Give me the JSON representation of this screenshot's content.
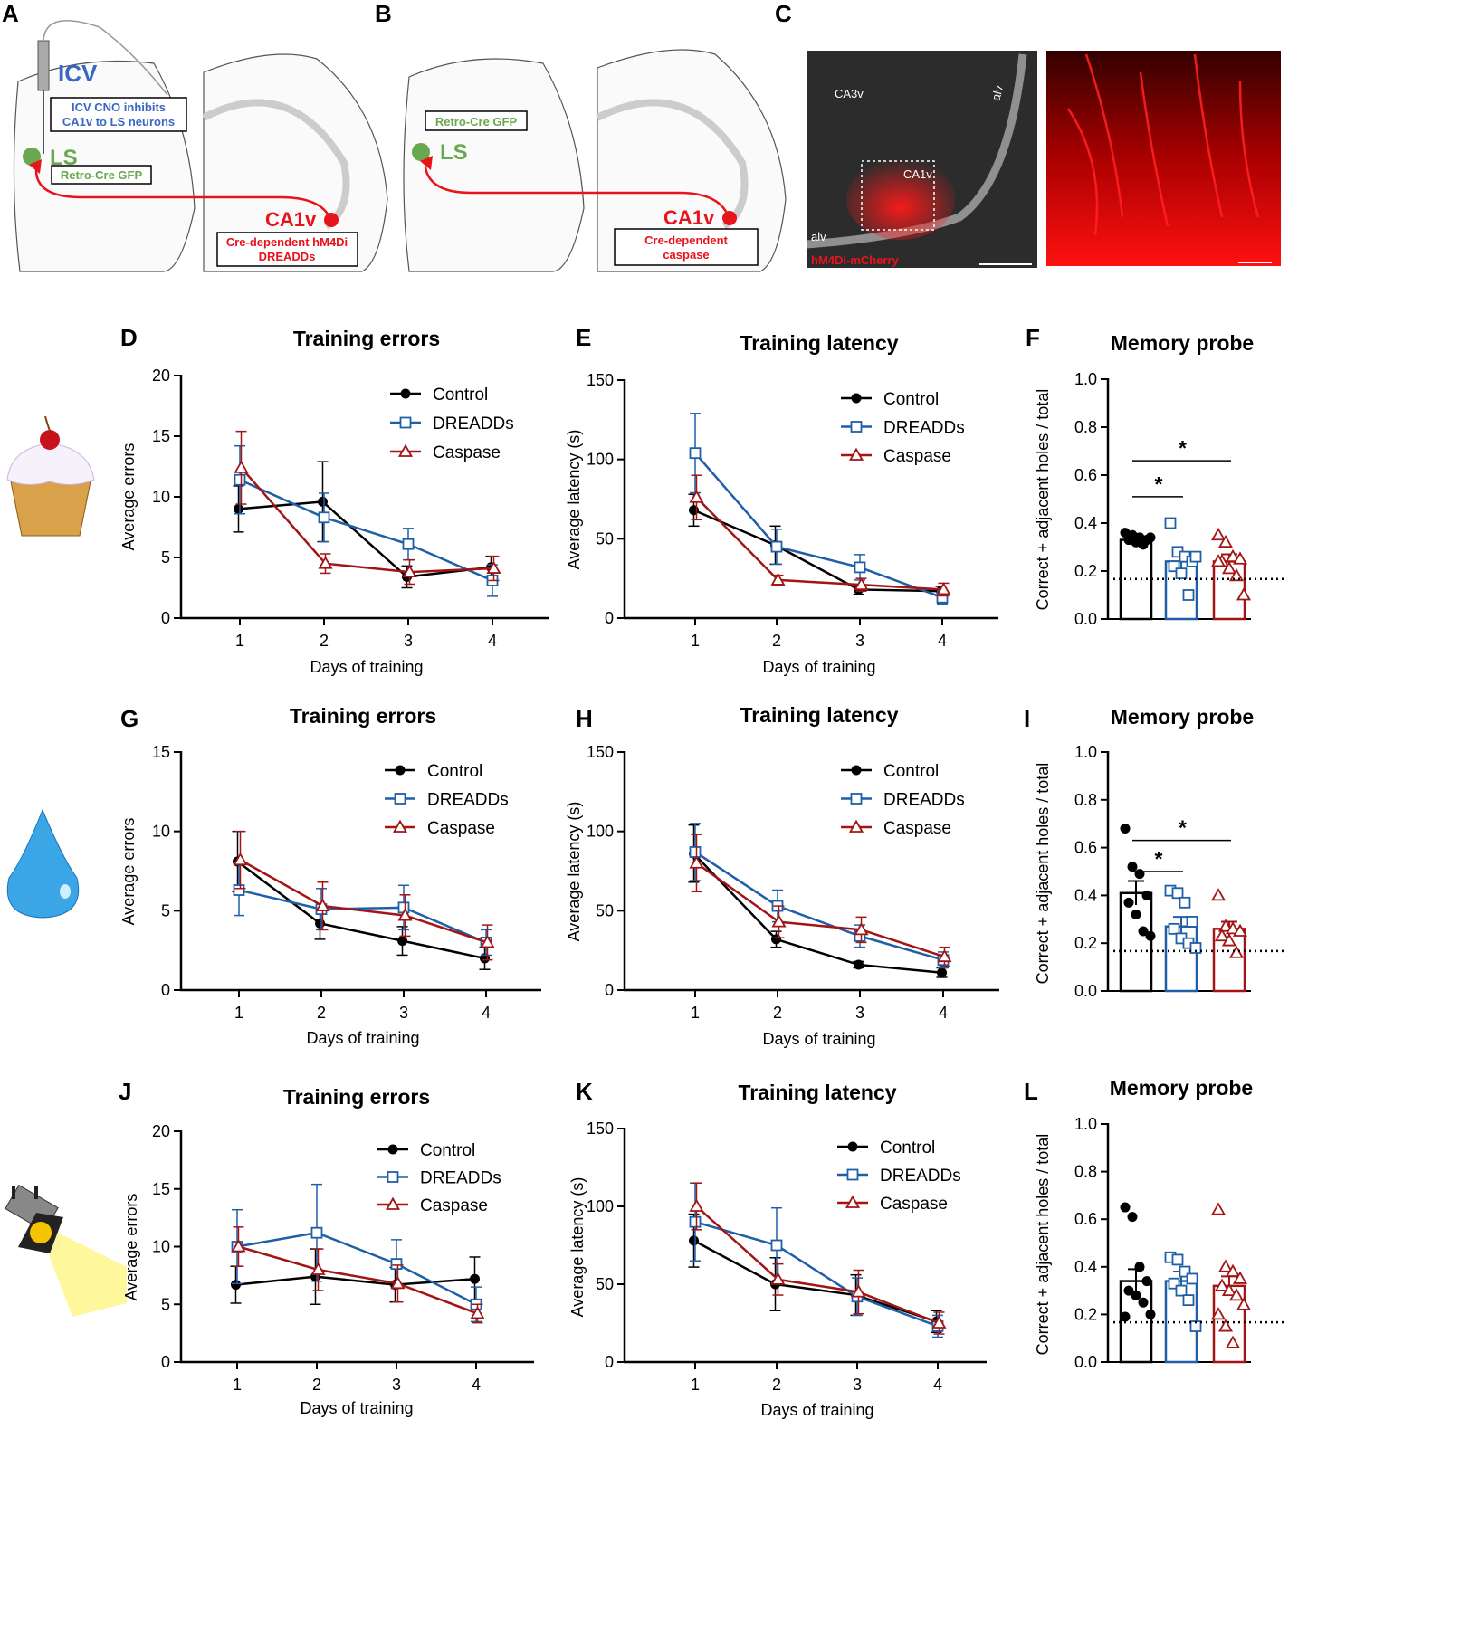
{
  "colors": {
    "control": "#000000",
    "dreadds": "#1f5fa8",
    "caspase": "#a31515",
    "green": "#6aa84f",
    "blue_text": "#3a66c4",
    "red": "#e8141b"
  },
  "top": {
    "A": {
      "letter": "A",
      "icv": "ICV",
      "icv_box": [
        "ICV CNO inhibits",
        "CA1v to LS neurons"
      ],
      "ls": "LS",
      "retro": "Retro-Cre GFP",
      "ca1v": "CA1v",
      "cre_box": [
        "Cre-dependent hM4Di",
        "DREADDs"
      ]
    },
    "B": {
      "letter": "B",
      "retro": "Retro-Cre GFP",
      "ls": "LS",
      "ca1v": "CA1v",
      "cre_box": [
        "Cre-dependent",
        "caspase"
      ]
    },
    "C": {
      "letter": "C",
      "ca3v": "CA3v",
      "alv_top": "alv",
      "ca1v": "CA1v",
      "alv_bottom": "alv",
      "stain": "hM4Di-mCherry"
    }
  },
  "icons": {
    "row1": "cupcake-icon",
    "row2": "water-drop-icon",
    "row3": "spotlight-icon"
  },
  "chart_data": [
    {
      "panel": "D",
      "type": "line",
      "title": "Training errors",
      "xlabel": "Days of training",
      "ylabel": "Average errors",
      "ylim": [
        0,
        20
      ],
      "yticks": [
        0,
        5,
        10,
        15,
        20
      ],
      "categories": [
        "1",
        "2",
        "3",
        "4"
      ],
      "legend": "top-right",
      "series": [
        {
          "name": "Control",
          "values": [
            9.0,
            9.6,
            3.4,
            4.2
          ],
          "sem": [
            1.9,
            3.3,
            0.9,
            0.9
          ]
        },
        {
          "name": "DREADDs",
          "values": [
            11.4,
            8.3,
            6.1,
            3.1
          ],
          "sem": [
            2.8,
            2.0,
            1.3,
            1.3
          ]
        },
        {
          "name": "Caspase",
          "values": [
            12.4,
            4.5,
            3.8,
            4.1
          ],
          "sem": [
            3.0,
            0.8,
            1.0,
            1.0
          ]
        }
      ]
    },
    {
      "panel": "E",
      "type": "line",
      "title": "Training latency",
      "xlabel": "Days of training",
      "ylabel": "Average latency (s)",
      "ylim": [
        0,
        150
      ],
      "yticks": [
        0,
        50,
        100,
        150
      ],
      "categories": [
        "1",
        "2",
        "3",
        "4"
      ],
      "legend": "top-right",
      "series": [
        {
          "name": "Control",
          "values": [
            68,
            46,
            18,
            17
          ],
          "sem": [
            10,
            12,
            3,
            3
          ]
        },
        {
          "name": "DREADDs",
          "values": [
            104,
            45,
            32,
            13
          ],
          "sem": [
            25,
            11,
            8,
            4
          ]
        },
        {
          "name": "Caspase",
          "values": [
            76,
            24,
            21,
            18
          ],
          "sem": [
            14,
            3,
            4,
            4
          ]
        }
      ]
    },
    {
      "panel": "F",
      "type": "bar",
      "title": "Memory probe",
      "ylabel": "Correct + adjacent holes / total",
      "ylim": [
        0,
        1
      ],
      "yticks": [
        "0.0",
        "0.2",
        "0.4",
        "0.6",
        "0.8",
        "1.0"
      ],
      "chance": 0.167,
      "significance": [
        {
          "from": 0,
          "to": 1,
          "y": 0.51,
          "label": "*"
        },
        {
          "from": 0,
          "to": 2,
          "y": 0.66,
          "label": "*"
        }
      ],
      "series": [
        {
          "name": "Control",
          "mean": 0.33,
          "sem": 0.01,
          "points": [
            0.36,
            0.35,
            0.34,
            0.33,
            0.33,
            0.32,
            0.31,
            0.34
          ]
        },
        {
          "name": "DREADDs",
          "mean": 0.24,
          "sem": 0.03,
          "points": [
            0.4,
            0.28,
            0.26,
            0.24,
            0.22,
            0.19,
            0.1,
            0.26
          ]
        },
        {
          "name": "Caspase",
          "mean": 0.24,
          "sem": 0.03,
          "points": [
            0.35,
            0.32,
            0.26,
            0.25,
            0.24,
            0.21,
            0.18,
            0.1,
            0.24
          ]
        }
      ]
    },
    {
      "panel": "G",
      "type": "line",
      "title": "Training errors",
      "xlabel": "Days of training",
      "ylabel": "Average errors",
      "ylim": [
        0,
        15
      ],
      "yticks": [
        0,
        5,
        10,
        15
      ],
      "categories": [
        "1",
        "2",
        "3",
        "4"
      ],
      "legend": "top-right",
      "series": [
        {
          "name": "Control",
          "values": [
            8.1,
            4.2,
            3.1,
            2.0
          ],
          "sem": [
            1.9,
            1.0,
            0.9,
            0.7
          ]
        },
        {
          "name": "DREADDs",
          "values": [
            6.3,
            5.1,
            5.2,
            3.0
          ],
          "sem": [
            1.6,
            1.3,
            1.4,
            0.8
          ]
        },
        {
          "name": "Caspase",
          "values": [
            8.2,
            5.3,
            4.7,
            3.0
          ],
          "sem": [
            1.8,
            1.5,
            1.3,
            1.1
          ]
        }
      ]
    },
    {
      "panel": "H",
      "type": "line",
      "title": "Training latency",
      "xlabel": "Days of training",
      "ylabel": "Average latency (s)",
      "ylim": [
        0,
        150
      ],
      "yticks": [
        0,
        50,
        100,
        150
      ],
      "categories": [
        "1",
        "2",
        "3",
        "4"
      ],
      "legend": "top-right",
      "series": [
        {
          "name": "Control",
          "values": [
            86,
            32,
            16,
            11
          ],
          "sem": [
            18,
            5,
            2,
            3
          ]
        },
        {
          "name": "DREADDs",
          "values": [
            87,
            53,
            34,
            19
          ],
          "sem": [
            18,
            10,
            7,
            5
          ]
        },
        {
          "name": "Caspase",
          "values": [
            80,
            43,
            38,
            21
          ],
          "sem": [
            18,
            10,
            8,
            6
          ]
        }
      ]
    },
    {
      "panel": "I",
      "type": "bar",
      "title": "Memory probe",
      "ylabel": "Correct + adjacent holes / total",
      "ylim": [
        0,
        1
      ],
      "yticks": [
        "0.0",
        "0.2",
        "0.4",
        "0.6",
        "0.8",
        "1.0"
      ],
      "chance": 0.167,
      "significance": [
        {
          "from": 0,
          "to": 1,
          "y": 0.5,
          "label": "*"
        },
        {
          "from": 0,
          "to": 2,
          "y": 0.63,
          "label": "*"
        }
      ],
      "series": [
        {
          "name": "Control",
          "mean": 0.41,
          "sem": 0.05,
          "points": [
            0.68,
            0.52,
            0.49,
            0.4,
            0.37,
            0.32,
            0.25,
            0.23
          ]
        },
        {
          "name": "DREADDs",
          "mean": 0.27,
          "sem": 0.04,
          "points": [
            0.42,
            0.41,
            0.37,
            0.29,
            0.26,
            0.22,
            0.2,
            0.18
          ]
        },
        {
          "name": "Caspase",
          "mean": 0.26,
          "sem": 0.03,
          "points": [
            0.4,
            0.27,
            0.26,
            0.25,
            0.23,
            0.21,
            0.16
          ]
        }
      ]
    },
    {
      "panel": "J",
      "type": "line",
      "title": "Training errors",
      "xlabel": "Days of training",
      "ylabel": "Average errors",
      "ylim": [
        0,
        20
      ],
      "yticks": [
        0,
        5,
        10,
        15,
        20
      ],
      "categories": [
        "1",
        "2",
        "3",
        "4"
      ],
      "legend": "top-right",
      "series": [
        {
          "name": "Control",
          "values": [
            6.7,
            7.4,
            6.7,
            7.2
          ],
          "sem": [
            1.6,
            2.4,
            1.5,
            1.9
          ]
        },
        {
          "name": "DREADDs",
          "values": [
            10.0,
            11.2,
            8.5,
            5.0
          ],
          "sem": [
            3.2,
            4.2,
            2.1,
            1.5
          ]
        },
        {
          "name": "Caspase",
          "values": [
            10.0,
            8.0,
            6.8,
            4.2
          ],
          "sem": [
            1.7,
            1.8,
            1.6,
            0.8
          ]
        }
      ]
    },
    {
      "panel": "K",
      "type": "line",
      "title": "Training latency",
      "xlabel": "Days of training",
      "ylabel": "Average latency (s)",
      "ylim": [
        0,
        150
      ],
      "yticks": [
        0,
        50,
        100,
        150
      ],
      "categories": [
        "1",
        "2",
        "3",
        "4"
      ],
      "legend": "top-right",
      "series": [
        {
          "name": "Control",
          "values": [
            78,
            50,
            43,
            26
          ],
          "sem": [
            17,
            17,
            13,
            7
          ]
        },
        {
          "name": "DREADDs",
          "values": [
            90,
            75,
            42,
            23
          ],
          "sem": [
            25,
            24,
            12,
            7
          ]
        },
        {
          "name": "Caspase",
          "values": [
            100,
            53,
            45,
            25
          ],
          "sem": [
            15,
            10,
            14,
            7
          ]
        }
      ]
    },
    {
      "panel": "L",
      "type": "bar",
      "title": "Memory probe",
      "ylabel": "Correct + adjacent holes / total",
      "ylim": [
        0,
        1
      ],
      "yticks": [
        "0.0",
        "0.2",
        "0.4",
        "0.6",
        "0.8",
        "1.0"
      ],
      "chance": 0.167,
      "significance": [],
      "series": [
        {
          "name": "Control",
          "mean": 0.34,
          "sem": 0.05,
          "points": [
            0.65,
            0.61,
            0.4,
            0.34,
            0.3,
            0.28,
            0.25,
            0.2,
            0.19
          ]
        },
        {
          "name": "DREADDs",
          "mean": 0.34,
          "sem": 0.04,
          "points": [
            0.44,
            0.43,
            0.38,
            0.35,
            0.33,
            0.3,
            0.26,
            0.15
          ]
        },
        {
          "name": "Caspase",
          "mean": 0.32,
          "sem": 0.04,
          "points": [
            0.64,
            0.4,
            0.38,
            0.35,
            0.32,
            0.3,
            0.28,
            0.24,
            0.2,
            0.15,
            0.08
          ]
        }
      ]
    }
  ]
}
